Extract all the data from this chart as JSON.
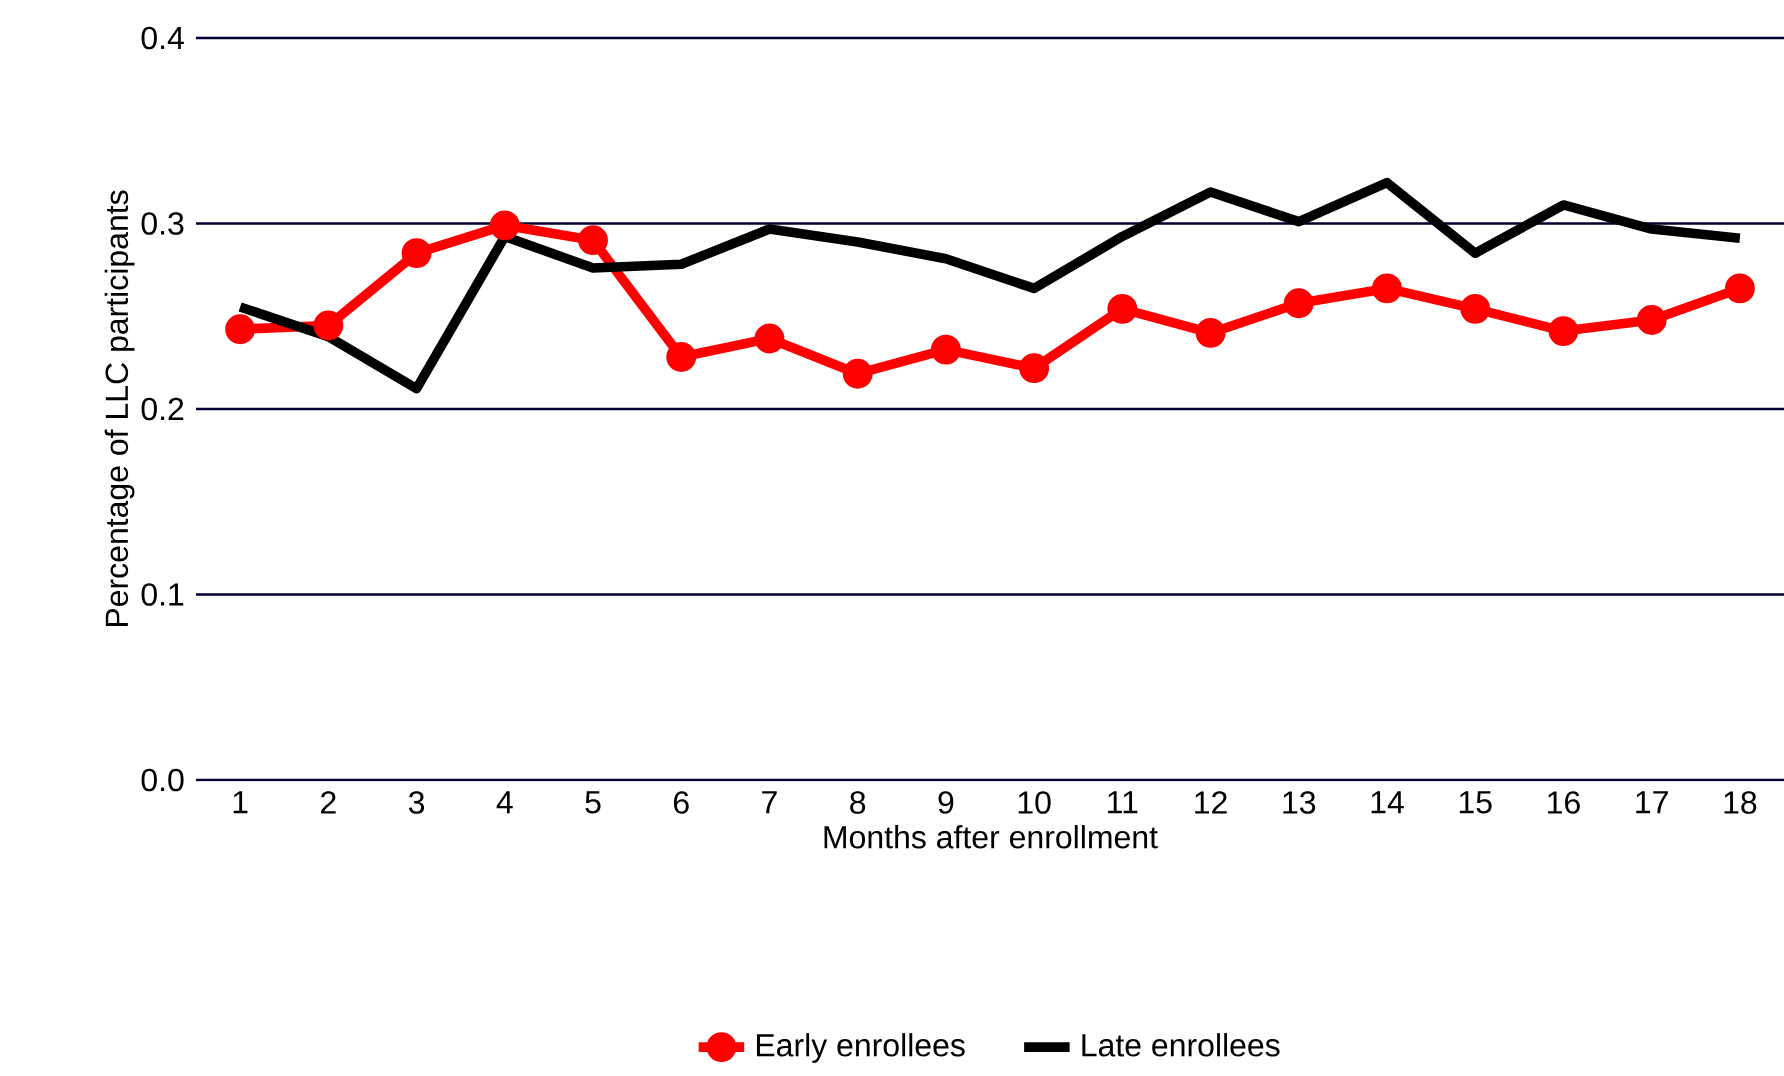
{
  "chart_data": {
    "type": "line",
    "xlabel": "Months after enrollment",
    "ylabel": "Percentage of LLC participants",
    "categories": [
      "1",
      "2",
      "3",
      "4",
      "5",
      "6",
      "7",
      "8",
      "9",
      "10",
      "11",
      "12",
      "13",
      "14",
      "15",
      "16",
      "17",
      "18"
    ],
    "series": [
      {
        "name": "Early enrollees",
        "color": "#ff0000",
        "marker": "circle",
        "values": [
          0.243,
          0.245,
          0.284,
          0.299,
          0.291,
          0.228,
          0.238,
          0.219,
          0.232,
          0.222,
          0.254,
          0.241,
          0.257,
          0.265,
          0.254,
          0.242,
          0.248,
          0.265
        ]
      },
      {
        "name": "Late enrollees",
        "color": "#000000",
        "marker": "none",
        "values": [
          0.255,
          0.239,
          0.211,
          0.293,
          0.276,
          0.278,
          0.297,
          0.29,
          0.281,
          0.265,
          0.293,
          0.317,
          0.301,
          0.322,
          0.284,
          0.31,
          0.297,
          0.292
        ]
      }
    ],
    "ylim": [
      0,
      0.4
    ],
    "yticks": [
      {
        "value": 0,
        "label": "0.0"
      },
      {
        "value": 0.1,
        "label": "0.1"
      },
      {
        "value": 0.2,
        "label": "0.2"
      },
      {
        "value": 0.3,
        "label": "0.3"
      },
      {
        "value": 0.4,
        "label": "0.4"
      }
    ],
    "grid": "y",
    "legend": "bottom",
    "line_style": "solid"
  }
}
